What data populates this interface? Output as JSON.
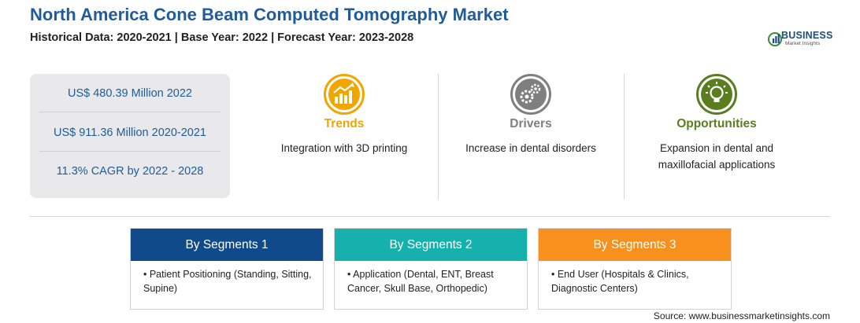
{
  "header": {
    "title": "North America Cone Beam Computed Tomography Market",
    "subtitle": "Historical Data: 2020-2021 | Base Year: 2022 | Forecast Year: 2023-2028"
  },
  "logo": {
    "word": "BUSINESS",
    "sub": "Market Insights"
  },
  "stats": [
    "US$ 480.39 Million 2022",
    "US$ 911.36 Million 2020-2021",
    "11.3% CAGR by 2022 - 2028"
  ],
  "features": [
    {
      "title": "Trends",
      "desc": "Integration with 3D printing",
      "color": "#f0a500",
      "icon": "trend-chart-icon"
    },
    {
      "title": "Drivers",
      "desc": "Increase in dental disorders",
      "color": "#7f7f7f",
      "icon": "gears-icon"
    },
    {
      "title": "Opportunities",
      "desc": "Expansion in dental and maxillofacial applications",
      "color": "#5a7d1f",
      "icon": "lightbulb-icon"
    }
  ],
  "segments": [
    {
      "title": "By Segments 1",
      "color": "#114a8b",
      "text": "• Patient Positioning (Standing, Sitting, Supine)"
    },
    {
      "title": "By Segments 2",
      "color": "#17b1ad",
      "text": "• Application (Dental, ENT, Breast Cancer, Skull Base, Orthopedic)"
    },
    {
      "title": "By Segments 3",
      "color": "#f7901e",
      "text": "• End User (Hospitals & Clinics, Diagnostic Centers)"
    }
  ],
  "source": "Source: www.businessmarketinsights.com"
}
